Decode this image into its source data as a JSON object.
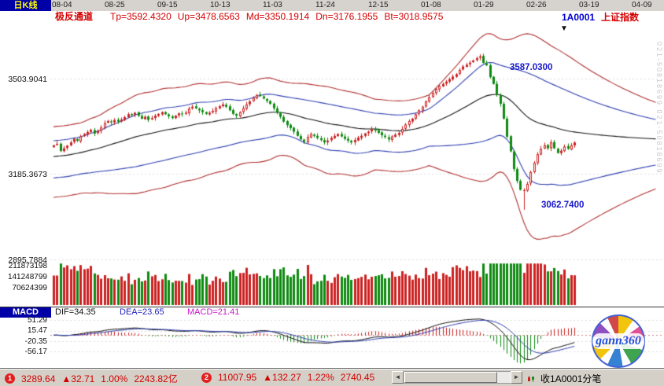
{
  "header": {
    "kline_label": "日K线",
    "indicator_name": "极反通道",
    "params": [
      "Tp=3592.4320",
      "Up=3478.6563",
      "Md=3350.1914",
      "Dn=3176.1955",
      "Bt=3018.9575"
    ],
    "symbol_code": "1A0001",
    "symbol_name": "上证指数"
  },
  "macd_header": {
    "label": "MACD",
    "dif": "DIF=34.35",
    "dea": "DEA=23.65",
    "macd": "MACD=21.41"
  },
  "status_bar": {
    "index1": {
      "badge": "1",
      "price": "3289.64",
      "change": "▲32.71",
      "percent": "1.00%",
      "amount": "2243.82亿"
    },
    "index2": {
      "badge": "2",
      "price": "11007.95",
      "change": "▲132.27",
      "percent": "1.22%",
      "amount": "2740.45"
    },
    "tick_panel_label": "收1A0001分笔"
  },
  "icons": {
    "scroll_left": "◄",
    "scroll_right": "►",
    "peak_marker": "▼"
  },
  "logo": {
    "text": "gann360"
  },
  "watermark": {
    "vertical_text": "021-50818699  021-50818699"
  },
  "chart_data": {
    "type": "candlestick",
    "title": "1A0001 上证指数 日K线",
    "x_tick_labels": [
      "08-04",
      "08-25",
      "09-15",
      "10-13",
      "11-03",
      "11-24",
      "12-15",
      "01-08",
      "01-29",
      "02-26",
      "03-19",
      "04-09"
    ],
    "price_axis_ticks": [
      3503.9041,
      3185.3673,
      2895.7884
    ],
    "volume_axis_ticks": [
      "211873198",
      "141248799",
      "70624399"
    ],
    "annotations": [
      {
        "text": "3587.0300"
      },
      {
        "text": "3062.7400"
      }
    ],
    "channel": {
      "Tp": 3592.432,
      "Up": 3478.6563,
      "Md": 3350.1914,
      "Dn": 3176.1955,
      "Bt": 3018.9575
    },
    "closes": [
      3280,
      3285,
      3261,
      3270,
      3279,
      3290,
      3302,
      3295,
      3310,
      3318,
      3325,
      3332,
      3320,
      3328,
      3340,
      3355,
      3362,
      3358,
      3365,
      3360,
      3367,
      3375,
      3385,
      3382,
      3390,
      3380,
      3370,
      3376,
      3366,
      3372,
      3380,
      3386,
      3392,
      3385,
      3378,
      3372,
      3380,
      3388,
      3385,
      3390,
      3404,
      3410,
      3405,
      3398,
      3392,
      3386,
      3390,
      3396,
      3406,
      3412,
      3418,
      3410,
      3398,
      3386,
      3380,
      3392,
      3405,
      3418,
      3428,
      3440,
      3450,
      3446,
      3438,
      3430,
      3420,
      3405,
      3390,
      3376,
      3360,
      3348,
      3338,
      3326,
      3312,
      3300,
      3292,
      3308,
      3318,
      3312,
      3305,
      3298,
      3290,
      3296,
      3305,
      3312,
      3318,
      3310,
      3302,
      3296,
      3290,
      3298,
      3306,
      3312,
      3320,
      3326,
      3334,
      3330,
      3322,
      3314,
      3308,
      3300,
      3310,
      3316,
      3322,
      3335,
      3350,
      3362,
      3370,
      3385,
      3398,
      3410,
      3428,
      3442,
      3456,
      3470,
      3480,
      3487,
      3495,
      3503,
      3512,
      3520,
      3534,
      3546,
      3552,
      3559,
      3566,
      3574,
      3580,
      3558,
      3550,
      3510,
      3487,
      3450,
      3420,
      3370,
      3309,
      3260,
      3200,
      3160,
      3130,
      3129,
      3150,
      3190,
      3221,
      3250,
      3268,
      3280,
      3270,
      3290,
      3270,
      3254,
      3262,
      3276,
      3268,
      3280,
      3289.64
    ],
    "special": {
      "peak_index": 126,
      "peak_high": 3587.03,
      "trough_index": 139,
      "trough_low": 3062.74,
      "last_close": 3289.64
    },
    "macd": {
      "dif": 34.35,
      "dea": 23.65,
      "macd": 21.41,
      "axis_ticks": [
        "51.29",
        "15.47",
        "-20.35",
        "-56.17"
      ]
    },
    "y_domain": [
      2890,
      3680
    ],
    "macd_y_domain": [
      -112,
      60
    ]
  }
}
